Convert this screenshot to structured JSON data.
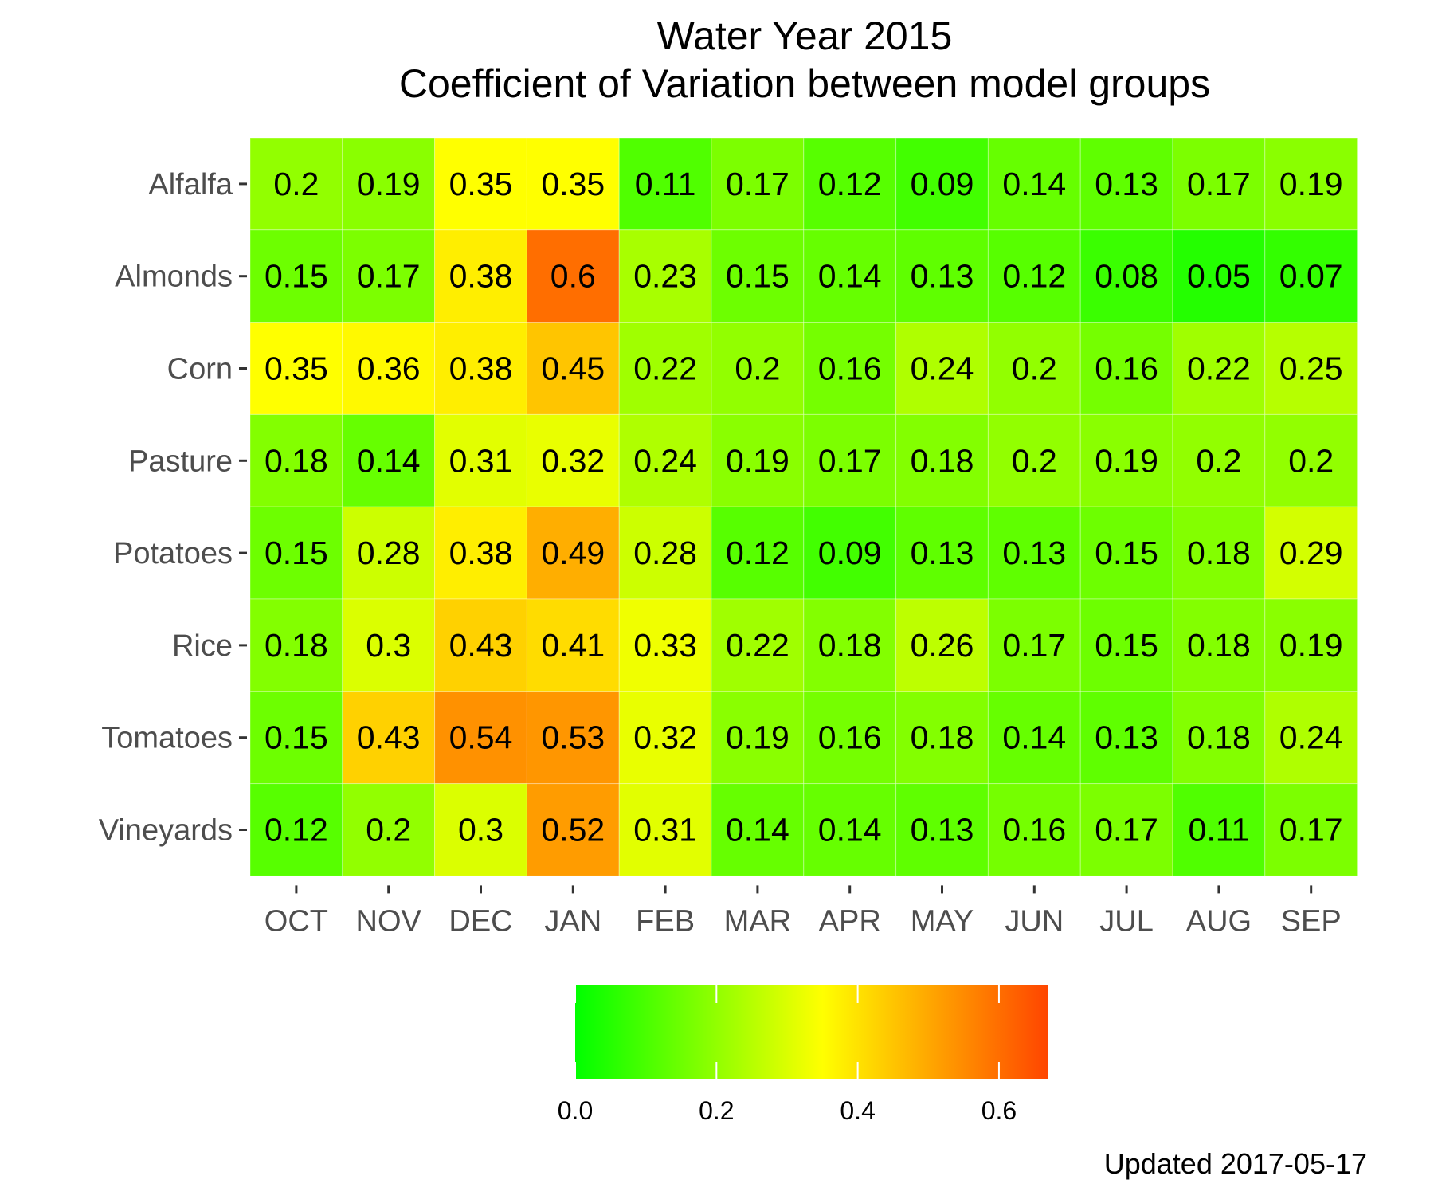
{
  "chart_data": {
    "type": "heatmap",
    "title": "Water Year 2015",
    "subtitle": "Coefficient of Variation between model groups",
    "rows": [
      "Alfalfa",
      "Almonds",
      "Corn",
      "Pasture",
      "Potatoes",
      "Rice",
      "Tomatoes",
      "Vineyards"
    ],
    "columns": [
      "OCT",
      "NOV",
      "DEC",
      "JAN",
      "FEB",
      "MAR",
      "APR",
      "MAY",
      "JUN",
      "JUL",
      "AUG",
      "SEP"
    ],
    "values": [
      [
        0.2,
        0.19,
        0.35,
        0.35,
        0.11,
        0.17,
        0.12,
        0.09,
        0.14,
        0.13,
        0.17,
        0.19
      ],
      [
        0.15,
        0.17,
        0.38,
        0.6,
        0.23,
        0.15,
        0.14,
        0.13,
        0.12,
        0.08,
        0.05,
        0.07
      ],
      [
        0.35,
        0.36,
        0.38,
        0.45,
        0.22,
        0.2,
        0.16,
        0.24,
        0.2,
        0.16,
        0.22,
        0.25
      ],
      [
        0.18,
        0.14,
        0.31,
        0.32,
        0.24,
        0.19,
        0.17,
        0.18,
        0.2,
        0.19,
        0.2,
        0.2
      ],
      [
        0.15,
        0.28,
        0.38,
        0.49,
        0.28,
        0.12,
        0.09,
        0.13,
        0.13,
        0.15,
        0.18,
        0.29
      ],
      [
        0.18,
        0.3,
        0.43,
        0.41,
        0.33,
        0.22,
        0.18,
        0.26,
        0.17,
        0.15,
        0.18,
        0.19
      ],
      [
        0.15,
        0.43,
        0.54,
        0.53,
        0.32,
        0.19,
        0.16,
        0.18,
        0.14,
        0.13,
        0.18,
        0.24
      ],
      [
        0.12,
        0.2,
        0.3,
        0.52,
        0.31,
        0.14,
        0.14,
        0.13,
        0.16,
        0.17,
        0.11,
        0.17
      ]
    ],
    "color_scale": {
      "domain": [
        0,
        0.35,
        0.67
      ],
      "colors": [
        "#00ff00",
        "#ffff00",
        "#ff4500"
      ],
      "ticks": [
        "0.0",
        "0.2",
        "0.4",
        "0.6"
      ],
      "tick_values": [
        0,
        0.2,
        0.4,
        0.6
      ]
    },
    "legend_placement": "bottom",
    "grid": false
  },
  "caption": "Updated  2017-05-17"
}
